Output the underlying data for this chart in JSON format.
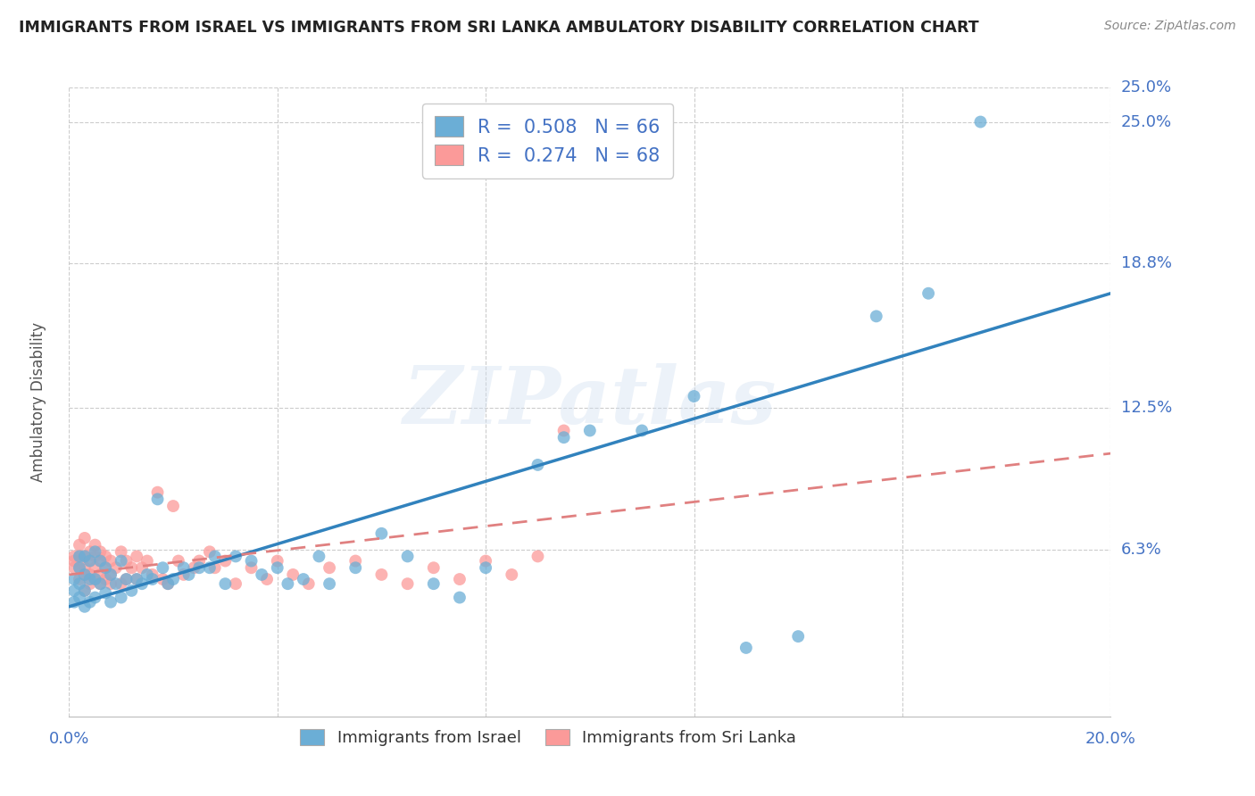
{
  "title": "IMMIGRANTS FROM ISRAEL VS IMMIGRANTS FROM SRI LANKA AMBULATORY DISABILITY CORRELATION CHART",
  "source": "Source: ZipAtlas.com",
  "xlabel_bottom": "Immigrants from Israel",
  "ylabel": "Ambulatory Disability",
  "legend_label_israel": "Immigrants from Israel",
  "legend_label_sri_lanka": "Immigrants from Sri Lanka",
  "R_israel": 0.508,
  "N_israel": 66,
  "R_sri_lanka": 0.274,
  "N_sri_lanka": 68,
  "x_min": 0.0,
  "x_max": 0.2,
  "y_min": -0.01,
  "y_max": 0.265,
  "y_ticks": [
    0.063,
    0.125,
    0.188,
    0.25
  ],
  "y_tick_labels": [
    "6.3%",
    "12.5%",
    "18.8%",
    "25.0%"
  ],
  "x_ticks": [
    0.0,
    0.04,
    0.08,
    0.12,
    0.16,
    0.2
  ],
  "color_israel": "#6baed6",
  "color_sri_lanka": "#fb9a99",
  "line_color_israel": "#3182bd",
  "line_color_sri_lanka": "#e08080",
  "background_color": "#ffffff",
  "watermark_text": "ZIPatlas",
  "israel_x": [
    0.001,
    0.001,
    0.001,
    0.002,
    0.002,
    0.002,
    0.002,
    0.003,
    0.003,
    0.003,
    0.003,
    0.004,
    0.004,
    0.004,
    0.005,
    0.005,
    0.005,
    0.006,
    0.006,
    0.007,
    0.007,
    0.008,
    0.008,
    0.009,
    0.01,
    0.01,
    0.011,
    0.012,
    0.013,
    0.014,
    0.015,
    0.016,
    0.017,
    0.018,
    0.019,
    0.02,
    0.022,
    0.023,
    0.025,
    0.027,
    0.028,
    0.03,
    0.032,
    0.035,
    0.037,
    0.04,
    0.042,
    0.045,
    0.048,
    0.05,
    0.055,
    0.06,
    0.065,
    0.07,
    0.075,
    0.08,
    0.09,
    0.095,
    0.1,
    0.11,
    0.12,
    0.13,
    0.14,
    0.155,
    0.165,
    0.175
  ],
  "israel_y": [
    0.04,
    0.045,
    0.05,
    0.042,
    0.048,
    0.055,
    0.06,
    0.038,
    0.045,
    0.052,
    0.06,
    0.04,
    0.05,
    0.058,
    0.042,
    0.05,
    0.062,
    0.048,
    0.058,
    0.044,
    0.055,
    0.04,
    0.052,
    0.048,
    0.042,
    0.058,
    0.05,
    0.045,
    0.05,
    0.048,
    0.052,
    0.05,
    0.085,
    0.055,
    0.048,
    0.05,
    0.055,
    0.052,
    0.055,
    0.055,
    0.06,
    0.048,
    0.06,
    0.058,
    0.052,
    0.055,
    0.048,
    0.05,
    0.06,
    0.048,
    0.055,
    0.07,
    0.06,
    0.048,
    0.042,
    0.055,
    0.1,
    0.112,
    0.115,
    0.115,
    0.13,
    0.02,
    0.025,
    0.165,
    0.175,
    0.25
  ],
  "sri_lanka_x": [
    0.001,
    0.001,
    0.001,
    0.002,
    0.002,
    0.002,
    0.002,
    0.003,
    0.003,
    0.003,
    0.003,
    0.003,
    0.004,
    0.004,
    0.004,
    0.004,
    0.005,
    0.005,
    0.005,
    0.005,
    0.006,
    0.006,
    0.006,
    0.006,
    0.007,
    0.007,
    0.007,
    0.008,
    0.008,
    0.008,
    0.009,
    0.01,
    0.01,
    0.011,
    0.011,
    0.012,
    0.013,
    0.013,
    0.014,
    0.015,
    0.016,
    0.017,
    0.018,
    0.019,
    0.02,
    0.021,
    0.022,
    0.024,
    0.025,
    0.027,
    0.028,
    0.03,
    0.032,
    0.035,
    0.038,
    0.04,
    0.043,
    0.046,
    0.05,
    0.055,
    0.06,
    0.065,
    0.07,
    0.075,
    0.08,
    0.085,
    0.09,
    0.095
  ],
  "sri_lanka_y": [
    0.06,
    0.058,
    0.055,
    0.065,
    0.06,
    0.055,
    0.05,
    0.068,
    0.06,
    0.055,
    0.052,
    0.045,
    0.062,
    0.058,
    0.052,
    0.048,
    0.065,
    0.06,
    0.055,
    0.05,
    0.062,
    0.058,
    0.052,
    0.048,
    0.06,
    0.055,
    0.05,
    0.058,
    0.052,
    0.048,
    0.055,
    0.062,
    0.048,
    0.058,
    0.05,
    0.055,
    0.06,
    0.05,
    0.055,
    0.058,
    0.052,
    0.088,
    0.05,
    0.048,
    0.082,
    0.058,
    0.052,
    0.055,
    0.058,
    0.062,
    0.055,
    0.058,
    0.048,
    0.055,
    0.05,
    0.058,
    0.052,
    0.048,
    0.055,
    0.058,
    0.052,
    0.048,
    0.055,
    0.05,
    0.058,
    0.052,
    0.06,
    0.115
  ],
  "israel_line_x0": 0.0,
  "israel_line_y0": 0.038,
  "israel_line_x1": 0.2,
  "israel_line_y1": 0.175,
  "sri_lanka_line_x0": 0.0,
  "sri_lanka_line_y0": 0.052,
  "sri_lanka_line_x1": 0.2,
  "sri_lanka_line_y1": 0.105
}
